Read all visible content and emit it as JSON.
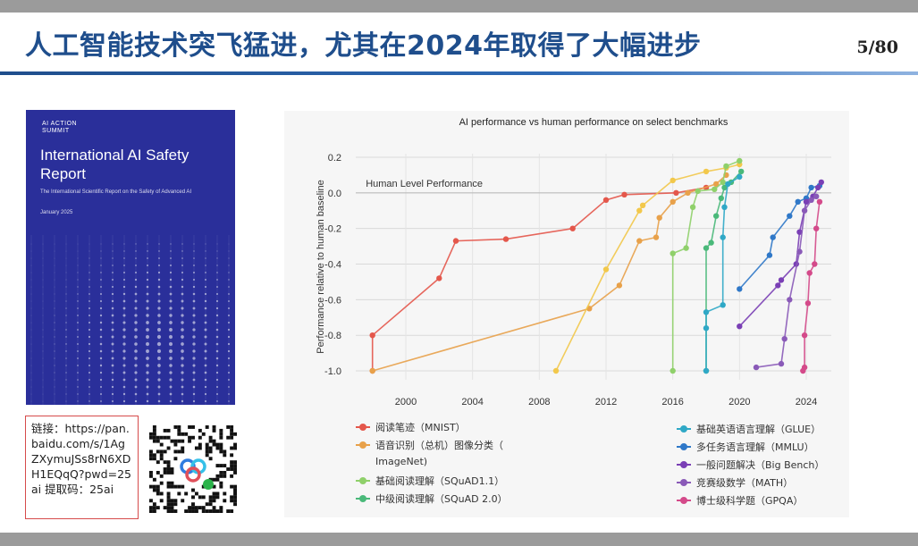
{
  "slide": {
    "title": "人工智能技术突飞猛进，尤其在2024年取得了大幅进步",
    "page": "5/80"
  },
  "cover": {
    "logo_line1": "AI ACTION",
    "logo_line2": "SUMMIT",
    "title": "International AI Safety Report",
    "subtitle": "The International Scientific Report on the Safety of Advanced AI",
    "date": "January 2025"
  },
  "link": {
    "text": "链接：https://pan.baidu.com/s/1AgZXymuJSs8rN6XDH1EQqQ?pwd=25ai 提取码：25ai"
  },
  "colors": {
    "mnist": "#e4574b",
    "image": "#e8a14a",
    "imagenet": "#f2c84b",
    "squad11": "#8fd06a",
    "squad20": "#4ab97a",
    "glue": "#2fa8c6",
    "mmlu": "#2f78c8",
    "bigbench": "#7a3fb5",
    "math": "#8a5ab8",
    "gpqa": "#d44a8a"
  },
  "chart_data": {
    "type": "line",
    "title": "AI performance vs human performance on select benchmarks",
    "xlabel": "",
    "ylabel": "Performance relative to human baseline",
    "xlim": [
      1997,
      2025.5
    ],
    "ylim": [
      -1.05,
      0.22
    ],
    "x_ticks": [
      "2000",
      "2004",
      "2008",
      "2012",
      "2016",
      "2020",
      "2024"
    ],
    "y_ticks": [
      "0.2",
      "0.0",
      "-0.2",
      "-0.4",
      "-0.6",
      "-0.8",
      "-1.0"
    ],
    "grid": true,
    "annotation": "Human Level Performance",
    "legend_position": "bottom",
    "series": [
      {
        "name": "阅读笔迹（MNIST）",
        "color_key": "mnist",
        "x": [
          1998,
          1998,
          2002,
          2003,
          2006,
          2010,
          2012,
          2013.1,
          2016.2,
          2018
        ],
        "y": [
          -1.0,
          -0.8,
          -0.48,
          -0.27,
          -0.26,
          -0.2,
          -0.04,
          -0.01,
          0.0,
          0.03
        ]
      },
      {
        "name": "语音识别（总机）图像分类（ImageNet）",
        "color_key": "image",
        "x": [
          1998,
          2011,
          2012.8,
          2014,
          2015,
          2015.2,
          2016,
          2016.9,
          2018.6,
          2019.2
        ],
        "y": [
          -1.0,
          -0.65,
          -0.52,
          -0.27,
          -0.25,
          -0.14,
          -0.05,
          0.0,
          0.05,
          0.1
        ]
      },
      {
        "name": "ImageNet",
        "color_key": "imagenet",
        "x": [
          2009,
          2012,
          2014,
          2014.2,
          2016,
          2018,
          2019.2,
          2020
        ],
        "y": [
          -1.0,
          -0.43,
          -0.1,
          -0.07,
          0.07,
          0.12,
          0.14,
          0.16
        ]
      },
      {
        "name": "基础阅读理解（SQuAD1.1）",
        "color_key": "squad11",
        "x": [
          2016,
          2016,
          2016.8,
          2017.2,
          2017.5,
          2018.5,
          2019,
          2019.2,
          2020
        ],
        "y": [
          -1.0,
          -0.34,
          -0.31,
          -0.08,
          0.01,
          0.02,
          0.06,
          0.15,
          0.18
        ]
      },
      {
        "name": "中级阅读理解（SQuAD 2.0）",
        "color_key": "squad20",
        "x": [
          2018,
          2018,
          2018.3,
          2018.6,
          2018.9,
          2019.1,
          2019.5,
          2020.1
        ],
        "y": [
          -1.0,
          -0.31,
          -0.28,
          -0.13,
          -0.03,
          0.03,
          0.06,
          0.12
        ]
      },
      {
        "name": "基础英语语言理解（GLUE）",
        "color_key": "glue",
        "x": [
          2018,
          2018,
          2018,
          2019,
          2019,
          2019.1,
          2019.3,
          2020
        ],
        "y": [
          -1.0,
          -0.76,
          -0.67,
          -0.63,
          -0.25,
          -0.08,
          0.05,
          0.09
        ]
      },
      {
        "name": "多任务语言理解（MMLU）",
        "color_key": "mmlu",
        "x": [
          2020,
          2021.8,
          2022,
          2023,
          2023.5,
          2024,
          2024.3,
          2024.8
        ],
        "y": [
          -0.54,
          -0.35,
          -0.25,
          -0.13,
          -0.05,
          -0.03,
          0.03,
          0.04
        ]
      },
      {
        "name": "一般问题解决（Big Bench）",
        "color_key": "bigbench",
        "x": [
          2020,
          2022.3,
          2022.5,
          2023.4,
          2023.6,
          2024,
          2024.4,
          2024.7,
          2024.9
        ],
        "y": [
          -0.75,
          -0.52,
          -0.49,
          -0.4,
          -0.22,
          -0.05,
          -0.02,
          0.03,
          0.06
        ]
      },
      {
        "name": "竞赛级数学（MATH）",
        "color_key": "math",
        "x": [
          2021,
          2022.5,
          2022.7,
          2023,
          2023.6,
          2023.9,
          2024.3,
          2024.6
        ],
        "y": [
          -0.98,
          -0.96,
          -0.82,
          -0.6,
          -0.33,
          -0.1,
          -0.04,
          -0.02
        ]
      },
      {
        "name": "博士级科学题（GPQA）",
        "color_key": "gpqa",
        "x": [
          2023.8,
          2023.9,
          2023.9,
          2024.1,
          2024.2,
          2024.5,
          2024.6,
          2024.8
        ],
        "y": [
          -1.0,
          -0.98,
          -0.8,
          -0.62,
          -0.45,
          -0.4,
          -0.2,
          -0.05
        ]
      }
    ]
  },
  "legend_left": [
    {
      "label": "阅读笔迹（MNIST）",
      "color_key": "mnist"
    },
    {
      "label": "语音识别（总机）图像分类（",
      "color_key": "image"
    },
    {
      "label": "ImageNet)",
      "color_key": null
    },
    {
      "label": "基础阅读理解（SQuAD1.1）",
      "color_key": "squad11"
    },
    {
      "label": "中级阅读理解（SQuAD 2.0）",
      "color_key": "squad20"
    }
  ],
  "legend_right": [
    {
      "label": "基础英语语言理解（GLUE）",
      "color_key": "glue"
    },
    {
      "label": "多任务语言理解（MMLU）",
      "color_key": "mmlu"
    },
    {
      "label": "一般问题解决（Big Bench）",
      "color_key": "bigbench"
    },
    {
      "label": "竞赛级数学（MATH）",
      "color_key": "math"
    },
    {
      "label": "博士级科学题（GPQA）",
      "color_key": "gpqa"
    }
  ]
}
